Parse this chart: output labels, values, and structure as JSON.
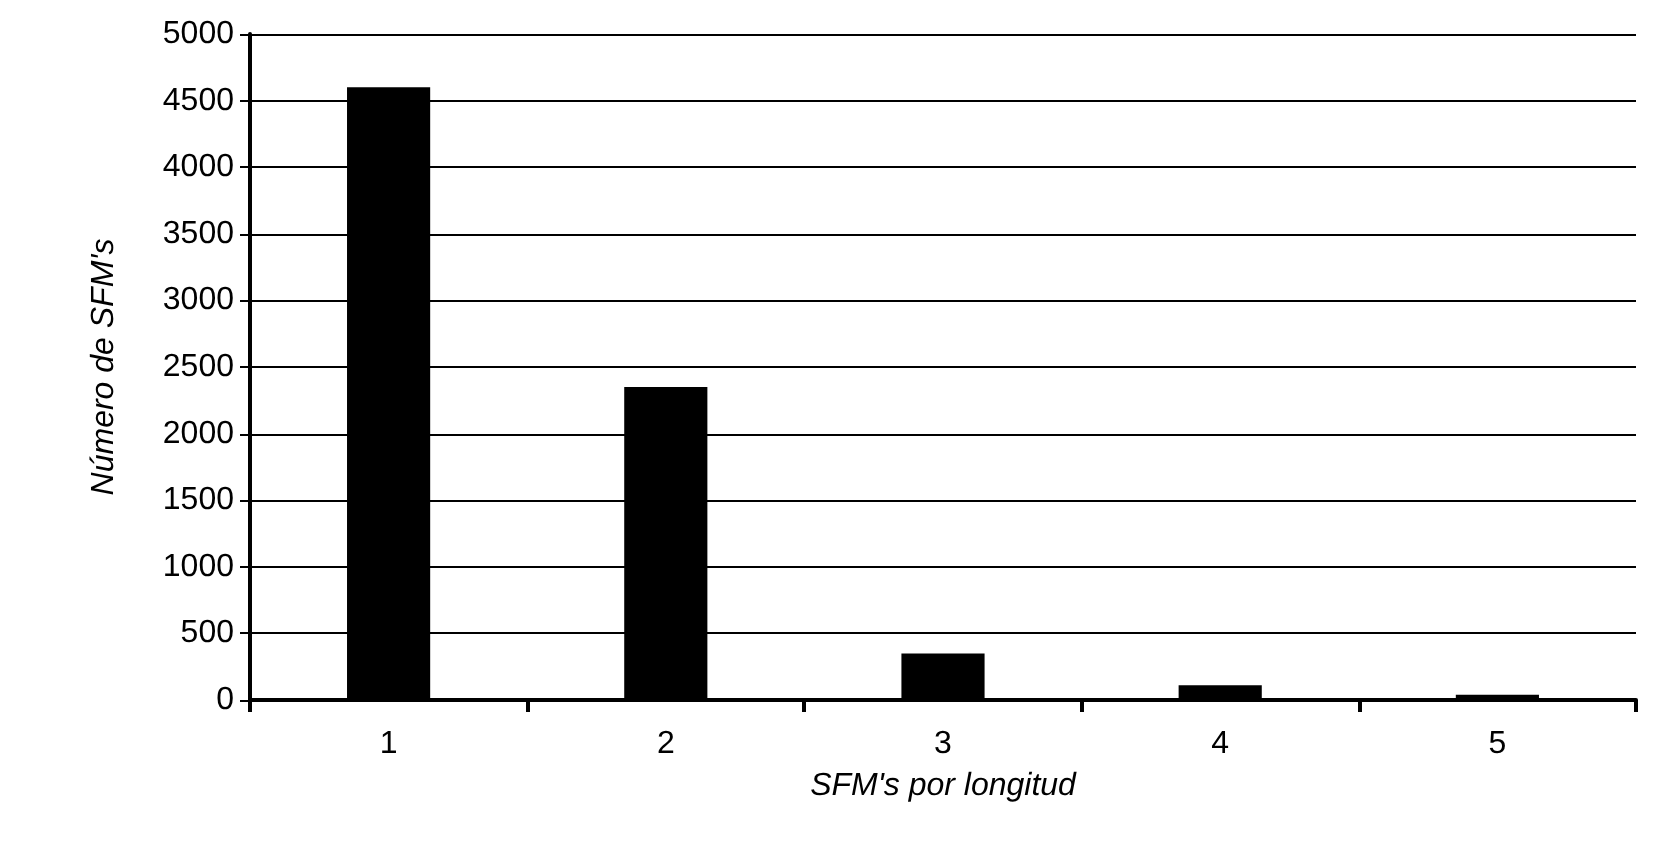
{
  "chart_data": {
    "type": "bar",
    "xlabel": "SFM's por longitud",
    "ylabel": "Número de SFM's",
    "categories": [
      "1",
      "2",
      "3",
      "4",
      "5"
    ],
    "values": [
      4600,
      2350,
      350,
      110,
      40
    ],
    "color": "#000000",
    "ylim": [
      0,
      5000
    ],
    "yticks": [
      0,
      500,
      1000,
      1500,
      2000,
      2500,
      3000,
      3500,
      4000,
      4500,
      5000
    ],
    "grid": "y"
  }
}
